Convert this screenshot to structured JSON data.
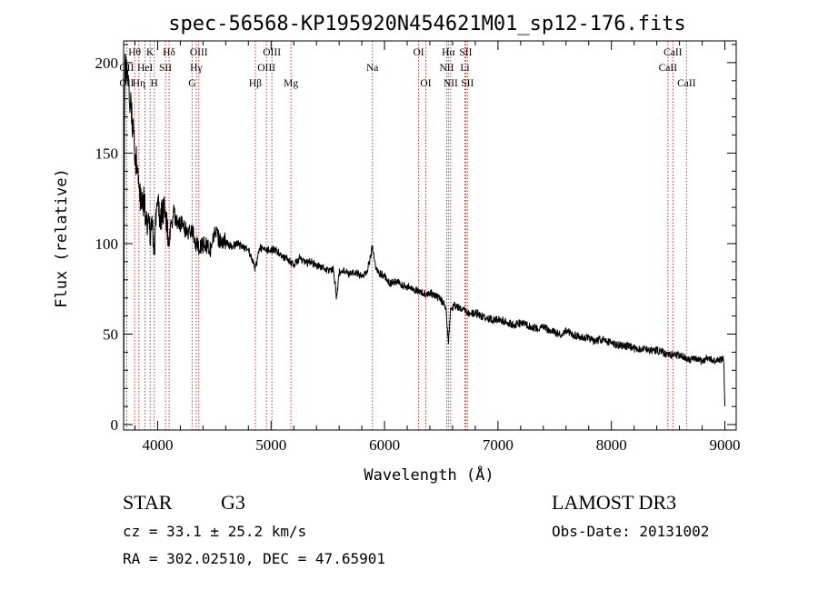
{
  "chart_data": {
    "type": "line",
    "title": "spec-56568-KP195920N454621M01_sp12-176.fits",
    "xlabel": "Wavelength (Å)",
    "ylabel": "Flux (relative)",
    "xlim": [
      3700,
      9100
    ],
    "ylim": [
      -3,
      212
    ],
    "x_ticks": [
      4000,
      5000,
      6000,
      7000,
      8000,
      9000
    ],
    "x_tick_labels": [
      "4000",
      "5000",
      "6000",
      "7000",
      "8000",
      "9000"
    ],
    "y_ticks": [
      0,
      50,
      100,
      150,
      200
    ],
    "y_tick_labels": [
      "0",
      "50",
      "100",
      "150",
      "200"
    ],
    "grid": false,
    "series": [
      {
        "name": "flux",
        "color": "#000000",
        "x": [
          3700,
          3712,
          3725,
          3740,
          3760,
          3780,
          3800,
          3820,
          3840,
          3860,
          3880,
          3900,
          3920,
          3935,
          3950,
          3968,
          3985,
          4000,
          4030,
          4060,
          4101,
          4140,
          4180,
          4220,
          4260,
          4300,
          4340,
          4380,
          4420,
          4460,
          4500,
          4550,
          4600,
          4650,
          4700,
          4750,
          4800,
          4861,
          4900,
          4950,
          5000,
          5050,
          5100,
          5150,
          5200,
          5250,
          5300,
          5350,
          5400,
          5450,
          5500,
          5550,
          5577,
          5600,
          5650,
          5700,
          5750,
          5800,
          5850,
          5893,
          5920,
          5950,
          6000,
          6050,
          6100,
          6150,
          6200,
          6250,
          6300,
          6350,
          6400,
          6450,
          6500,
          6540,
          6563,
          6580,
          6620,
          6660,
          6700,
          6750,
          6800,
          6850,
          6900,
          6950,
          7000,
          7050,
          7100,
          7150,
          7200,
          7250,
          7300,
          7350,
          7400,
          7450,
          7500,
          7550,
          7600,
          7650,
          7700,
          7750,
          7800,
          7850,
          7900,
          7950,
          8000,
          8050,
          8100,
          8150,
          8200,
          8250,
          8300,
          8350,
          8400,
          8450,
          8500,
          8542,
          8600,
          8650,
          8700,
          8750,
          8800,
          8850,
          8900,
          8950,
          8990,
          9000
        ],
        "y": [
          75,
          205,
          195,
          188,
          178,
          165,
          150,
          142,
          130,
          120,
          125,
          110,
          118,
          105,
          115,
          95,
          112,
          122,
          115,
          118,
          102,
          118,
          110,
          112,
          105,
          108,
          100,
          98,
          100,
          96,
          106,
          102,
          101,
          98,
          100,
          98,
          97,
          86,
          98,
          96,
          97,
          96,
          93,
          91,
          88,
          92,
          89,
          90,
          88,
          87,
          85,
          86,
          70,
          84,
          85,
          83,
          84,
          82,
          85,
          98,
          87,
          84,
          82,
          78,
          79,
          77,
          76,
          75,
          74,
          72,
          73,
          71,
          69,
          65,
          45,
          63,
          66,
          64,
          63,
          61,
          62,
          60,
          59,
          58,
          58,
          57,
          56,
          55,
          56,
          55,
          54,
          53,
          54,
          52,
          51,
          50,
          52,
          50,
          49,
          48,
          48,
          46,
          47,
          46,
          45,
          44,
          44,
          43,
          42,
          42,
          42,
          41,
          41,
          40,
          38,
          39,
          38,
          37,
          36,
          36,
          35,
          37,
          35,
          36,
          36,
          12
        ]
      }
    ],
    "line_markers": [
      {
        "label": "Hθ",
        "x": 3797,
        "row": 0
      },
      {
        "label": "OII",
        "x": 3727,
        "row": 1
      },
      {
        "label": "OII",
        "x": 3727,
        "row": 2
      },
      {
        "label": "K",
        "x": 3934,
        "row": 0
      },
      {
        "label": "HeI",
        "x": 3889,
        "row": 1
      },
      {
        "label": "Hη",
        "x": 3835,
        "row": 2
      },
      {
        "label": "SII",
        "x": 4069,
        "row": 1
      },
      {
        "label": "H",
        "x": 3970,
        "row": 2
      },
      {
        "label": "Hδ",
        "x": 4101,
        "row": 0
      },
      {
        "label": "OIII",
        "x": 4363,
        "row": 0
      },
      {
        "label": "Hγ",
        "x": 4340,
        "row": 1
      },
      {
        "label": "G",
        "x": 4304,
        "row": 2
      },
      {
        "label": "Hβ",
        "x": 4861,
        "row": 2
      },
      {
        "label": "OIII",
        "x": 5007,
        "row": 0
      },
      {
        "label": "OIII",
        "x": 4959,
        "row": 1
      },
      {
        "label": "Mg",
        "x": 5175,
        "row": 2
      },
      {
        "label": "Na",
        "x": 5893,
        "row": 1
      },
      {
        "label": "OI",
        "x": 6300,
        "row": 0
      },
      {
        "label": "OI",
        "x": 6364,
        "row": 2
      },
      {
        "label": "Hα",
        "x": 6563,
        "row": 0
      },
      {
        "label": "SII",
        "x": 6716,
        "row": 0
      },
      {
        "label": "NII",
        "x": 6548,
        "row": 1
      },
      {
        "label": "Li",
        "x": 6708,
        "row": 1
      },
      {
        "label": "NII",
        "x": 6583,
        "row": 2
      },
      {
        "label": "SII",
        "x": 6731,
        "row": 2
      },
      {
        "label": "CaII",
        "x": 8542,
        "row": 0
      },
      {
        "label": "CaII",
        "x": 8498,
        "row": 1
      },
      {
        "label": "CaII",
        "x": 8662,
        "row": 2
      }
    ],
    "marker_wavelengths": [
      3727,
      3797,
      3835,
      3889,
      3934,
      3970,
      4069,
      4101,
      4304,
      4340,
      4363,
      4861,
      4959,
      5007,
      5175,
      5893,
      6300,
      6364,
      6548,
      6563,
      6583,
      6708,
      6716,
      6731,
      8498,
      8542,
      8662
    ],
    "marker_color": "#cc3333"
  },
  "info": {
    "object_class": "STAR",
    "subclass": "G3",
    "survey": "LAMOST DR3",
    "cz": "cz = 33.1 ± 25.2 km/s",
    "obs_date": "Obs-Date: 20131002",
    "coords": "RA = 302.02510, DEC =  47.65901"
  }
}
